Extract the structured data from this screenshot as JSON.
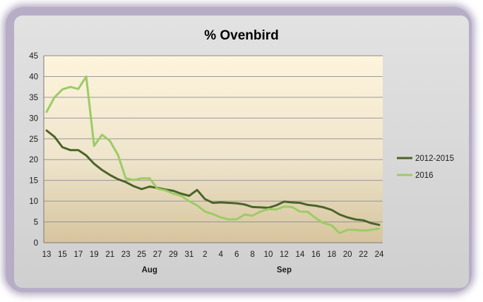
{
  "chart_data": {
    "type": "line",
    "title": "% Ovenbird",
    "xlabel": "",
    "ylabel": "",
    "ylim": [
      0,
      45
    ],
    "yticks": [
      0,
      5,
      10,
      15,
      20,
      25,
      30,
      35,
      40,
      45
    ],
    "x": [
      "13",
      "14",
      "15",
      "16",
      "17",
      "18",
      "19",
      "20",
      "21",
      "22",
      "23",
      "24",
      "25",
      "26",
      "27",
      "28",
      "29",
      "30",
      "31",
      "1",
      "2",
      "3",
      "4",
      "5",
      "6",
      "7",
      "8",
      "9",
      "10",
      "11",
      "12",
      "13",
      "14",
      "15",
      "16",
      "17",
      "18",
      "19",
      "20",
      "21",
      "22",
      "23",
      "24"
    ],
    "xtick_labels": [
      "13",
      "15",
      "17",
      "19",
      "21",
      "23",
      "25",
      "27",
      "29",
      "31",
      "2",
      "4",
      "6",
      "8",
      "10",
      "12",
      "14",
      "16",
      "18",
      "20",
      "22",
      "24"
    ],
    "month_labels": [
      {
        "label": "Aug",
        "x_index": 13
      },
      {
        "label": "Sep",
        "x_index": 30
      }
    ],
    "series": [
      {
        "name": "2012-2015",
        "color": "#4a6427",
        "values": [
          27,
          25.5,
          23,
          22.3,
          22.3,
          21,
          19,
          17.5,
          16.3,
          15.3,
          14.6,
          13.6,
          12.9,
          13.5,
          13.2,
          12.8,
          12.5,
          11.8,
          11.3,
          12.7,
          10.5,
          9.6,
          9.7,
          9.6,
          9.5,
          9.2,
          8.6,
          8.5,
          8.4,
          9,
          9.9,
          9.7,
          9.6,
          9.1,
          8.9,
          8.5,
          7.9,
          6.8,
          6.1,
          5.6,
          5.4,
          4.7,
          4.3
        ]
      },
      {
        "name": "2016",
        "color": "#9ccb65",
        "values": [
          31.5,
          35,
          36.9,
          37.5,
          37,
          40,
          23.3,
          26,
          24.5,
          21.2,
          15.5,
          15.1,
          15.5,
          15.5,
          13,
          12.6,
          11.8,
          11.3,
          10,
          9,
          7.5,
          6.9,
          6.1,
          5.6,
          5.6,
          6.8,
          6.5,
          7.5,
          8.1,
          8,
          8.7,
          8.6,
          7.5,
          7.4,
          5.9,
          4.7,
          4.2,
          2.3,
          3.1,
          3.1,
          2.9,
          3.1,
          3.4
        ]
      }
    ],
    "grid": true,
    "legend": "right"
  }
}
